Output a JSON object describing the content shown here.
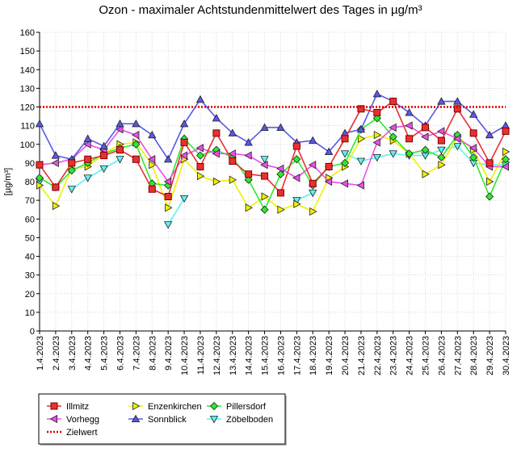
{
  "chart_data": {
    "type": "line",
    "title": "Ozon -  maximaler Achtstundenmittelwert des Tages in µg/m³",
    "ylabel": "[µg/m³]",
    "ylim": [
      0,
      160
    ],
    "yticks": [
      "0",
      "10",
      "20",
      "30",
      "40",
      "50",
      "60",
      "70",
      "80",
      "90",
      "100",
      "110",
      "120",
      "130",
      "140",
      "150",
      "160"
    ],
    "grid": true,
    "legend": "bottom-left",
    "categories": [
      "1.4.2023",
      "2.4.2023",
      "3.4.2023",
      "4.4.2023",
      "5.4.2023",
      "6.4.2023",
      "7.4.2023",
      "8.4.2023",
      "9.4.2023",
      "10.4.2023",
      "11.4.2023",
      "12.4.2023",
      "13.4.2023",
      "14.4.2023",
      "15.4.2023",
      "16.4.2023",
      "17.4.2023",
      "18.4.2023",
      "19.4.2023",
      "20.4.2023",
      "21.4.2023",
      "22.4.2023",
      "23.4.2023",
      "24.4.2023",
      "25.4.2023",
      "26.4.2023",
      "27.4.2023",
      "28.4.2023",
      "29.4.2023",
      "30.4.2023"
    ],
    "threshold": {
      "name": "Zielwert",
      "value": 120,
      "color": "#dd0000"
    },
    "series": [
      {
        "name": "Illmitz",
        "color": "#e83030",
        "fill": "#e83030",
        "marker": "square",
        "values": [
          89,
          77,
          90,
          92,
          94,
          97,
          92,
          76,
          72,
          101,
          88,
          106,
          91,
          84,
          83,
          74,
          99,
          79,
          88,
          103,
          119,
          117,
          123,
          103,
          109,
          102,
          119,
          106,
          90,
          107
        ]
      },
      {
        "name": "Enzenkirchen",
        "color": "#f0f000",
        "fill": "#f0f000",
        "marker": "triangle-right",
        "values": [
          78,
          67,
          87,
          88,
          95,
          100,
          101,
          89,
          66,
          92,
          83,
          80,
          81,
          66,
          72,
          65,
          68,
          64,
          82,
          88,
          103,
          105,
          102,
          95,
          84,
          89,
          104,
          97,
          80,
          96
        ]
      },
      {
        "name": "Pillersdorf",
        "color": "#30e830",
        "fill": "#30e830",
        "marker": "diamond",
        "values": [
          82,
          77,
          86,
          90,
          95,
          98,
          100,
          79,
          78,
          103,
          94,
          97,
          93,
          81,
          65,
          84,
          92,
          78,
          88,
          90,
          108,
          114,
          104,
          95,
          97,
          93,
          105,
          93,
          72,
          92
        ]
      },
      {
        "name": "Vorhegg",
        "color": "#e850e8",
        "fill": "#e850e8",
        "marker": "triangle-left",
        "values": [
          89,
          90,
          92,
          100,
          97,
          108,
          105,
          92,
          80,
          94,
          98,
          95,
          95,
          94,
          89,
          87,
          82,
          89,
          80,
          79,
          78,
          101,
          109,
          110,
          104,
          107,
          103,
          98,
          88,
          88
        ]
      },
      {
        "name": "Sonnblick",
        "color": "#5858e8",
        "fill": "#5858e8",
        "marker": "triangle-up",
        "values": [
          111,
          94,
          92,
          103,
          99,
          111,
          111,
          105,
          92,
          111,
          124,
          114,
          106,
          101,
          109,
          109,
          101,
          102,
          96,
          106,
          108,
          127,
          123,
          117,
          110,
          123,
          123,
          116,
          105,
          110
        ]
      },
      {
        "name": "Zöbelboden",
        "color": "#60f0f0",
        "fill": "#60f0f0",
        "marker": "triangle-down",
        "values": [
          80,
          null,
          76,
          82,
          87,
          92,
          null,
          null,
          57,
          71,
          null,
          null,
          null,
          null,
          92,
          null,
          70,
          74,
          null,
          95,
          91,
          93,
          95,
          94,
          94,
          97,
          99,
          90,
          89,
          89
        ]
      }
    ]
  }
}
